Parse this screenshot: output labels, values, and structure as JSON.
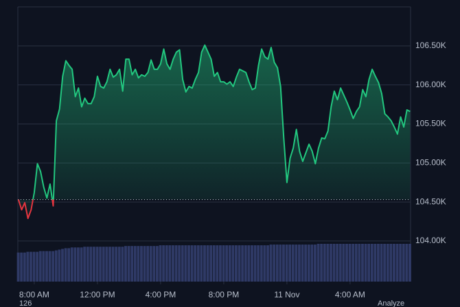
{
  "chart_data": {
    "type": "line",
    "x": [
      -1.0,
      -0.8,
      -0.6,
      -0.4,
      -0.2,
      0.0,
      0.2,
      0.4,
      0.6,
      0.8,
      1.0,
      1.2,
      1.4,
      1.6,
      1.8,
      2.0,
      2.2,
      2.4,
      2.6,
      2.8,
      3.0,
      3.2,
      3.4,
      3.6,
      3.8,
      4.0,
      4.2,
      4.4,
      4.6,
      4.8,
      5.0,
      5.2,
      5.4,
      5.6,
      5.8,
      6.0,
      6.2,
      6.4,
      6.6,
      6.8,
      7.0,
      7.2,
      7.4,
      7.6,
      7.8,
      8.0,
      8.2,
      8.4,
      8.6,
      8.8,
      9.0,
      9.2,
      9.4,
      9.6,
      9.8,
      10.0,
      10.2,
      10.4,
      10.6,
      10.8,
      11.0,
      11.2,
      11.4,
      11.6,
      11.8,
      12.0,
      12.2,
      12.4,
      12.6,
      12.8,
      13.0,
      13.2,
      13.4,
      13.6,
      13.8,
      14.0,
      14.2,
      14.4,
      14.6,
      14.8,
      15.0,
      15.2,
      15.4,
      15.6,
      15.8,
      16.0,
      16.2,
      16.4,
      16.6,
      16.8,
      17.0,
      17.2,
      17.4,
      17.6,
      17.8,
      18.0,
      18.2,
      18.4,
      18.6,
      18.8,
      19.0,
      19.2,
      19.4,
      19.6,
      19.8,
      20.0,
      20.2,
      20.4,
      20.6,
      20.8,
      21.0,
      21.2,
      21.4,
      21.6,
      21.8,
      22.0,
      22.2,
      22.4,
      22.6,
      22.8,
      23.0,
      23.2,
      23.4,
      23.6,
      23.8
    ],
    "series": [
      {
        "color": "#22c77f",
        "down_color": "#e5353f",
        "values": [
          104.53,
          104.4,
          104.49,
          104.29,
          104.4,
          104.62,
          104.99,
          104.89,
          104.69,
          104.55,
          104.73,
          104.45,
          105.54,
          105.69,
          106.11,
          106.31,
          106.25,
          106.2,
          105.85,
          105.96,
          105.72,
          105.83,
          105.76,
          105.76,
          105.85,
          106.11,
          105.98,
          105.96,
          106.04,
          106.2,
          106.1,
          106.13,
          106.2,
          105.92,
          106.33,
          106.33,
          106.13,
          106.2,
          106.09,
          106.13,
          106.11,
          106.16,
          106.32,
          106.2,
          106.2,
          106.27,
          106.46,
          106.27,
          106.2,
          106.33,
          106.42,
          106.45,
          106.07,
          105.91,
          105.98,
          105.96,
          106.07,
          106.16,
          106.42,
          106.51,
          106.42,
          106.33,
          106.11,
          106.16,
          106.04,
          106.04,
          106.01,
          106.04,
          105.98,
          106.1,
          106.2,
          106.18,
          106.16,
          106.04,
          105.94,
          105.96,
          106.25,
          106.46,
          106.36,
          106.33,
          106.48,
          106.29,
          106.22,
          105.98,
          105.32,
          104.75,
          105.06,
          105.19,
          105.43,
          105.15,
          105.02,
          105.13,
          105.24,
          105.15,
          104.99,
          105.19,
          105.32,
          105.31,
          105.41,
          105.72,
          105.92,
          105.81,
          105.96,
          105.87,
          105.78,
          105.68,
          105.57,
          105.66,
          105.72,
          105.94,
          105.85,
          106.07,
          106.2,
          106.11,
          106.03,
          105.89,
          105.63,
          105.59,
          105.54,
          105.46,
          105.37,
          105.59,
          105.46,
          105.68,
          105.66
        ]
      }
    ],
    "volume": {
      "color": "#2f3a66",
      "values": [
        40,
        40,
        40,
        41,
        41,
        41,
        41,
        42,
        42,
        42,
        42,
        42,
        43,
        44,
        45,
        46,
        46,
        47,
        47,
        47,
        47,
        48,
        48,
        48,
        48,
        48,
        48,
        48,
        48,
        48,
        48,
        48,
        48,
        48,
        49,
        49,
        49,
        49,
        49,
        49,
        49,
        49,
        49,
        49,
        49,
        50,
        50,
        50,
        50,
        50,
        50,
        50,
        50,
        50,
        50,
        50,
        50,
        50,
        50,
        50,
        50,
        50,
        50,
        50,
        50,
        50,
        50,
        50,
        50,
        50,
        50,
        50,
        50,
        50,
        50,
        50,
        50,
        50,
        50,
        50,
        51,
        51,
        51,
        51,
        51,
        51,
        51,
        51,
        51,
        51,
        51,
        51,
        51,
        51,
        51,
        52,
        52,
        52,
        52,
        52,
        52,
        52,
        52,
        52,
        52,
        52,
        52,
        52,
        52,
        52,
        52,
        52,
        52,
        52,
        52,
        52,
        52,
        52,
        52,
        52,
        52,
        52,
        52,
        52,
        52
      ]
    },
    "baseline": 104.53,
    "xlim": [
      -1.04,
      23.83
    ],
    "xticks": [
      {
        "value": 0,
        "label": "8:00 AM"
      },
      {
        "value": 4,
        "label": "12:00 PM"
      },
      {
        "value": 8,
        "label": "4:00 PM"
      },
      {
        "value": 12,
        "label": "8:00 PM"
      },
      {
        "value": 16,
        "label": "11 Nov"
      },
      {
        "value": 20,
        "label": "4:00 AM"
      }
    ],
    "ylim": [
      103.48,
      107.0
    ],
    "yticks": [
      {
        "value": 104.0,
        "label": "104.00K"
      },
      {
        "value": 104.5,
        "label": "104.50K"
      },
      {
        "value": 105.0,
        "label": "105.00K"
      },
      {
        "value": 105.5,
        "label": "105.50K"
      },
      {
        "value": 106.0,
        "label": "106.00K"
      },
      {
        "value": 106.5,
        "label": "106.50K"
      }
    ],
    "grid": true,
    "footer_left": "126",
    "footer_right": "Analyze"
  }
}
